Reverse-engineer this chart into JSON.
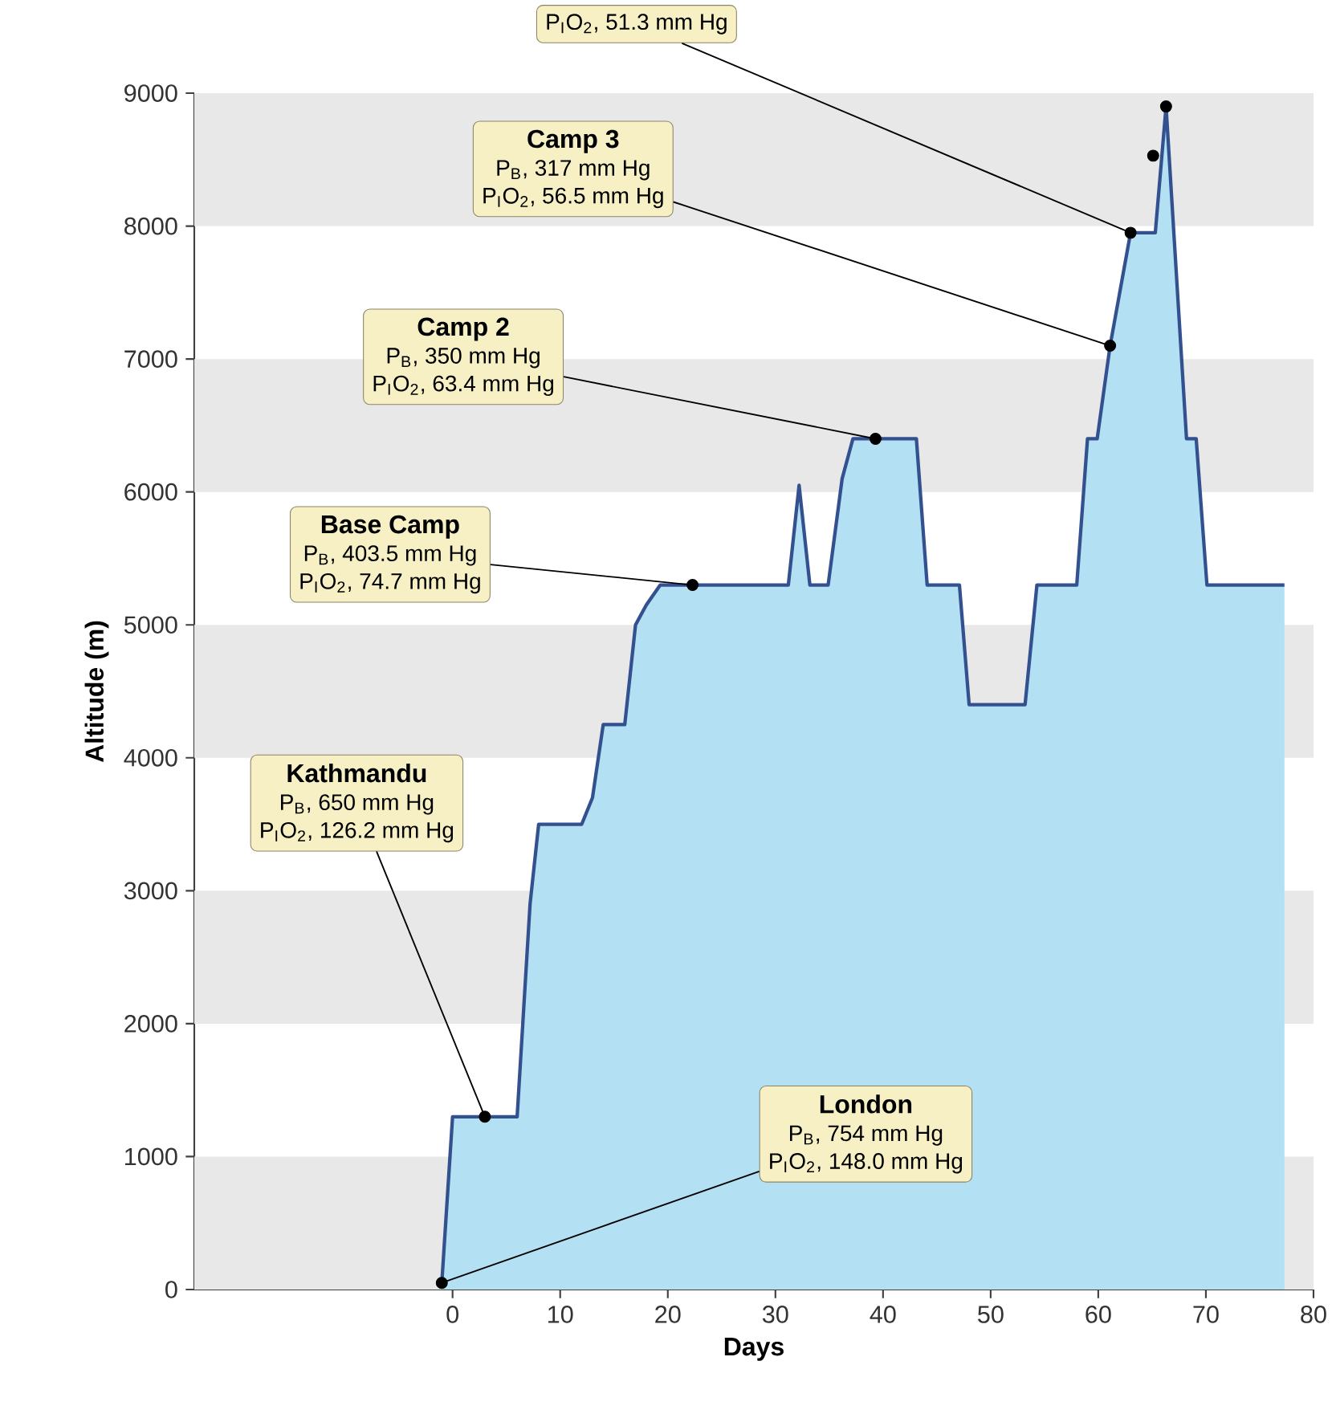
{
  "chart_data": {
    "type": "area",
    "xlabel": "Days",
    "ylabel": "Altitude (m)",
    "xlim": [
      -24,
      80
    ],
    "xticks": [
      0,
      10,
      20,
      30,
      40,
      50,
      60,
      70,
      80
    ],
    "ylim": [
      0,
      9000
    ],
    "yticks": [
      0,
      1000,
      2000,
      3000,
      4000,
      5000,
      6000,
      7000,
      8000,
      9000
    ],
    "series": [
      {
        "color": "#33508f",
        "x": [
          -1,
          0,
          6,
          7.2,
          8,
          12,
          13,
          14,
          16,
          17,
          18,
          19.3,
          31.2,
          32.2,
          33.2,
          34.9,
          36.2,
          37.2,
          43.1,
          44.1,
          47.1,
          48,
          53.2,
          54.3,
          58,
          59,
          59.9,
          61.1,
          63,
          65.3,
          66.3,
          68.2,
          69.1,
          70.1,
          77.3
        ],
        "values": [
          50,
          1300,
          1300,
          2900,
          3500,
          3500,
          3700,
          4250,
          4250,
          5000,
          5150,
          5300,
          5300,
          6050,
          5300,
          5300,
          6100,
          6400,
          6400,
          5300,
          5300,
          4400,
          4400,
          5300,
          5300,
          6400,
          6400,
          7100,
          7950,
          7950,
          8900,
          6400,
          6400,
          5300,
          5300
        ]
      },
      {
        "type": "scatter",
        "color": "#000000",
        "marker": "circle",
        "x": [
          -1,
          3,
          22.3,
          39.3,
          61.1,
          63,
          65.1,
          66.3
        ],
        "values": [
          50,
          1300,
          5300,
          6400,
          7100,
          7950,
          8530,
          8900
        ]
      }
    ],
    "bands": [
      {
        "axis": "y",
        "from": 0,
        "to": 1000,
        "color": "#e8e8e8"
      },
      {
        "axis": "y",
        "from": 2000,
        "to": 3000,
        "color": "#e8e8e8"
      },
      {
        "axis": "y",
        "from": 4000,
        "to": 5000,
        "color": "#e8e8e8"
      },
      {
        "axis": "y",
        "from": 6000,
        "to": 7000,
        "color": "#e8e8e8"
      },
      {
        "axis": "y",
        "from": 8000,
        "to": 9000,
        "color": "#e8e8e8"
      }
    ],
    "annotations": [
      "London",
      "P$_{B}$, 754 mm Hg",
      {
        "text": "P$_{I}$O$_{2}$, 148.0 mm Hg",
        "x": -1,
        "y": 50
      },
      "Kathmandu",
      "P$_{B}$, 650 mm Hg",
      {
        "text": "P$_{I}$O$_{2}$, 126.2 mm Hg",
        "x": 3,
        "y": 1300
      },
      "Base Camp",
      "P$_{B}$, 403.5 mm Hg",
      {
        "text": "P$_{I}$O$_{2}$, 74.7 mm Hg",
        "x": 22.3,
        "y": 5300
      },
      "Camp 2",
      "P$_{B}$, 350 mm Hg",
      {
        "text": "P$_{I}$O$_{2}$, 63.4 mm Hg",
        "x": 39.3,
        "y": 6400
      },
      "Camp 3",
      "P$_{B}$, 317 mm Hg",
      {
        "text": "P$_{I}$O$_{2}$, 56.5 mm Hg",
        "x": 61.1,
        "y": 7100
      },
      {
        "text": "P$_{I}$O$_{2}$, 51.3 mm Hg",
        "x": 63,
        "y": 7950
      }
    ]
  }
}
